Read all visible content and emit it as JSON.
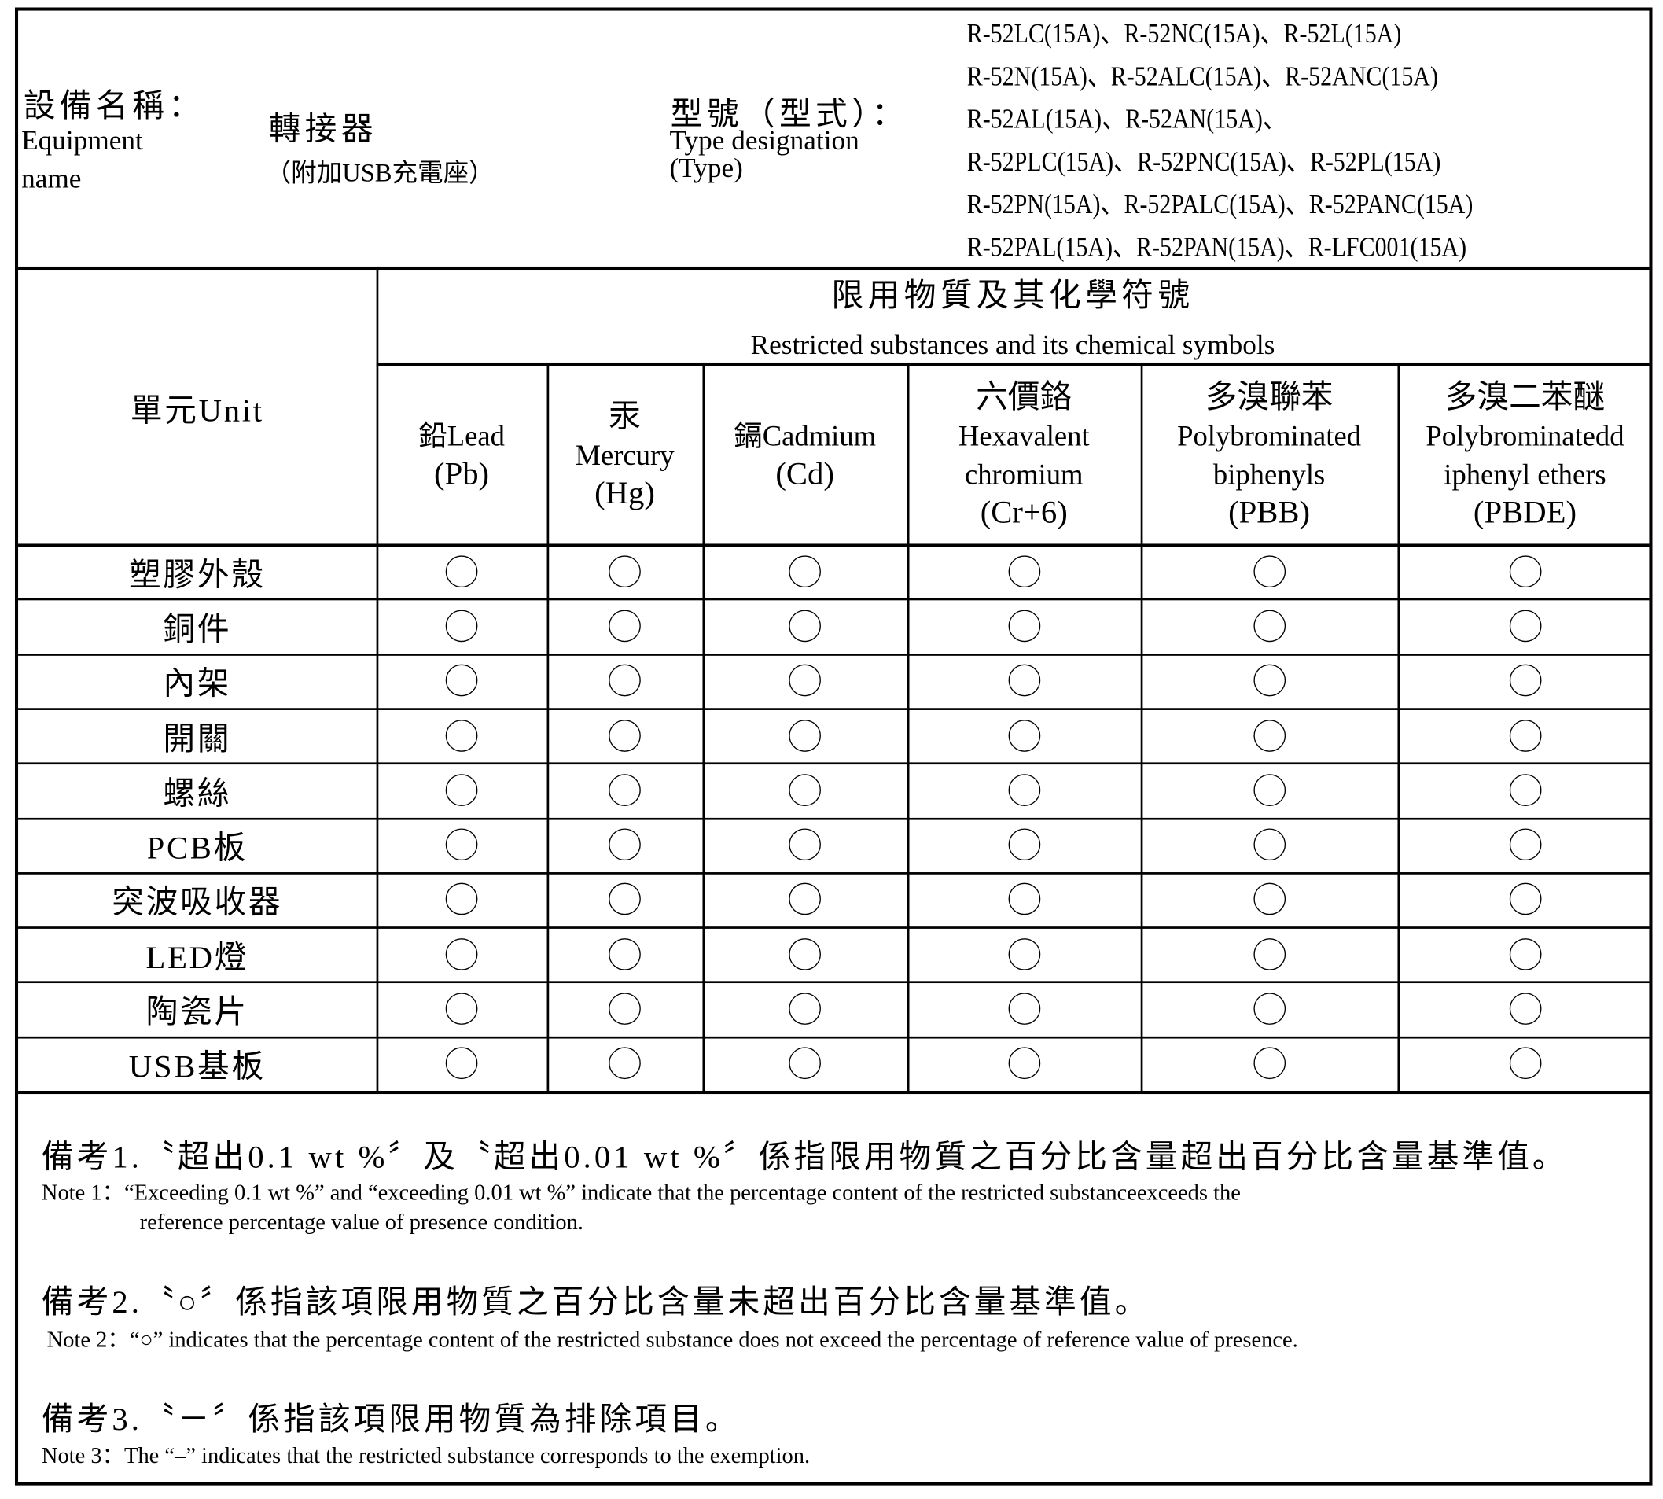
{
  "header": {
    "equipment_label_zh": "設備名稱：",
    "equipment_label_en_1": "Equipment",
    "equipment_label_en_2": "name",
    "equipment_name": "轉接器",
    "equipment_name_sub": "（附加USB充電座）",
    "type_label_zh": "型號（型式）：",
    "type_label_en_1": "Type designation",
    "type_label_en_2": "(Type)",
    "models": [
      "R-52LC(15A)、R-52NC(15A)、R-52L(15A)",
      "R-52N(15A)、R-52ALC(15A)、R-52ANC(15A)",
      "R-52AL(15A)、R-52AN(15A)、",
      "R-52PLC(15A)、R-52PNC(15A)、R-52PL(15A)",
      "R-52PN(15A)、R-52PALC(15A)、R-52PANC(15A)",
      "R-52PAL(15A)、R-52PAN(15A)、R-LFC001(15A)"
    ]
  },
  "table": {
    "unit_header": "單元Unit",
    "substances_title_zh": "限用物質及其化學符號",
    "substances_title_en": "Restricted substances and its chemical symbols",
    "columns": [
      {
        "lines": [
          "鉛Lead",
          "(Pb)"
        ]
      },
      {
        "lines": [
          "汞",
          "Mercury",
          "(Hg)"
        ]
      },
      {
        "lines": [
          "鎘Cadmium",
          "(Cd)"
        ]
      },
      {
        "lines": [
          "六價鉻",
          "Hexavalent",
          "chromium",
          "(Cr+6)"
        ]
      },
      {
        "lines": [
          "多溴聯苯",
          "Polybrominated",
          "biphenyls",
          "(PBB)"
        ]
      },
      {
        "lines": [
          "多溴二苯醚",
          "Polybrominatedd",
          "iphenyl ethers",
          "(PBDE)"
        ]
      }
    ],
    "rows": [
      {
        "unit": "塑膠外殼",
        "values": [
          "○",
          "○",
          "○",
          "○",
          "○",
          "○"
        ]
      },
      {
        "unit": "銅件",
        "values": [
          "○",
          "○",
          "○",
          "○",
          "○",
          "○"
        ]
      },
      {
        "unit": "內架",
        "values": [
          "○",
          "○",
          "○",
          "○",
          "○",
          "○"
        ]
      },
      {
        "unit": "開關",
        "values": [
          "○",
          "○",
          "○",
          "○",
          "○",
          "○"
        ]
      },
      {
        "unit": "螺絲",
        "values": [
          "○",
          "○",
          "○",
          "○",
          "○",
          "○"
        ]
      },
      {
        "unit": "PCB板",
        "values": [
          "○",
          "○",
          "○",
          "○",
          "○",
          "○"
        ]
      },
      {
        "unit": "突波吸收器",
        "values": [
          "○",
          "○",
          "○",
          "○",
          "○",
          "○"
        ]
      },
      {
        "unit": "LED燈",
        "values": [
          "○",
          "○",
          "○",
          "○",
          "○",
          "○"
        ]
      },
      {
        "unit": "陶瓷片",
        "values": [
          "○",
          "○",
          "○",
          "○",
          "○",
          "○"
        ]
      },
      {
        "unit": "USB基板",
        "values": [
          "○",
          "○",
          "○",
          "○",
          "○",
          "○"
        ]
      }
    ]
  },
  "notes": [
    {
      "zh": "備考1.〝超出0.1 wt %〞及〝超出0.01 wt %〞係指限用物質之百分比含量超出百分比含量基準值。",
      "en": "Note 1：“Exceeding 0.1 wt %” and “exceeding 0.01 wt %” indicate that the percentage content of the restricted substanceexceeds the",
      "en2": "reference percentage value of presence condition."
    },
    {
      "zh": "備考2.〝○〞係指該項限用物質之百分比含量未超出百分比含量基準值。",
      "en": "Note 2：“○” indicates that the percentage content of the restricted substance does not exceed the percentage of reference value of presence."
    },
    {
      "zh": "備考3.〝－〞係指該項限用物質為排除項目。",
      "en": "Note 3：The “–” indicates that the restricted substance corresponds to the exemption."
    }
  ]
}
